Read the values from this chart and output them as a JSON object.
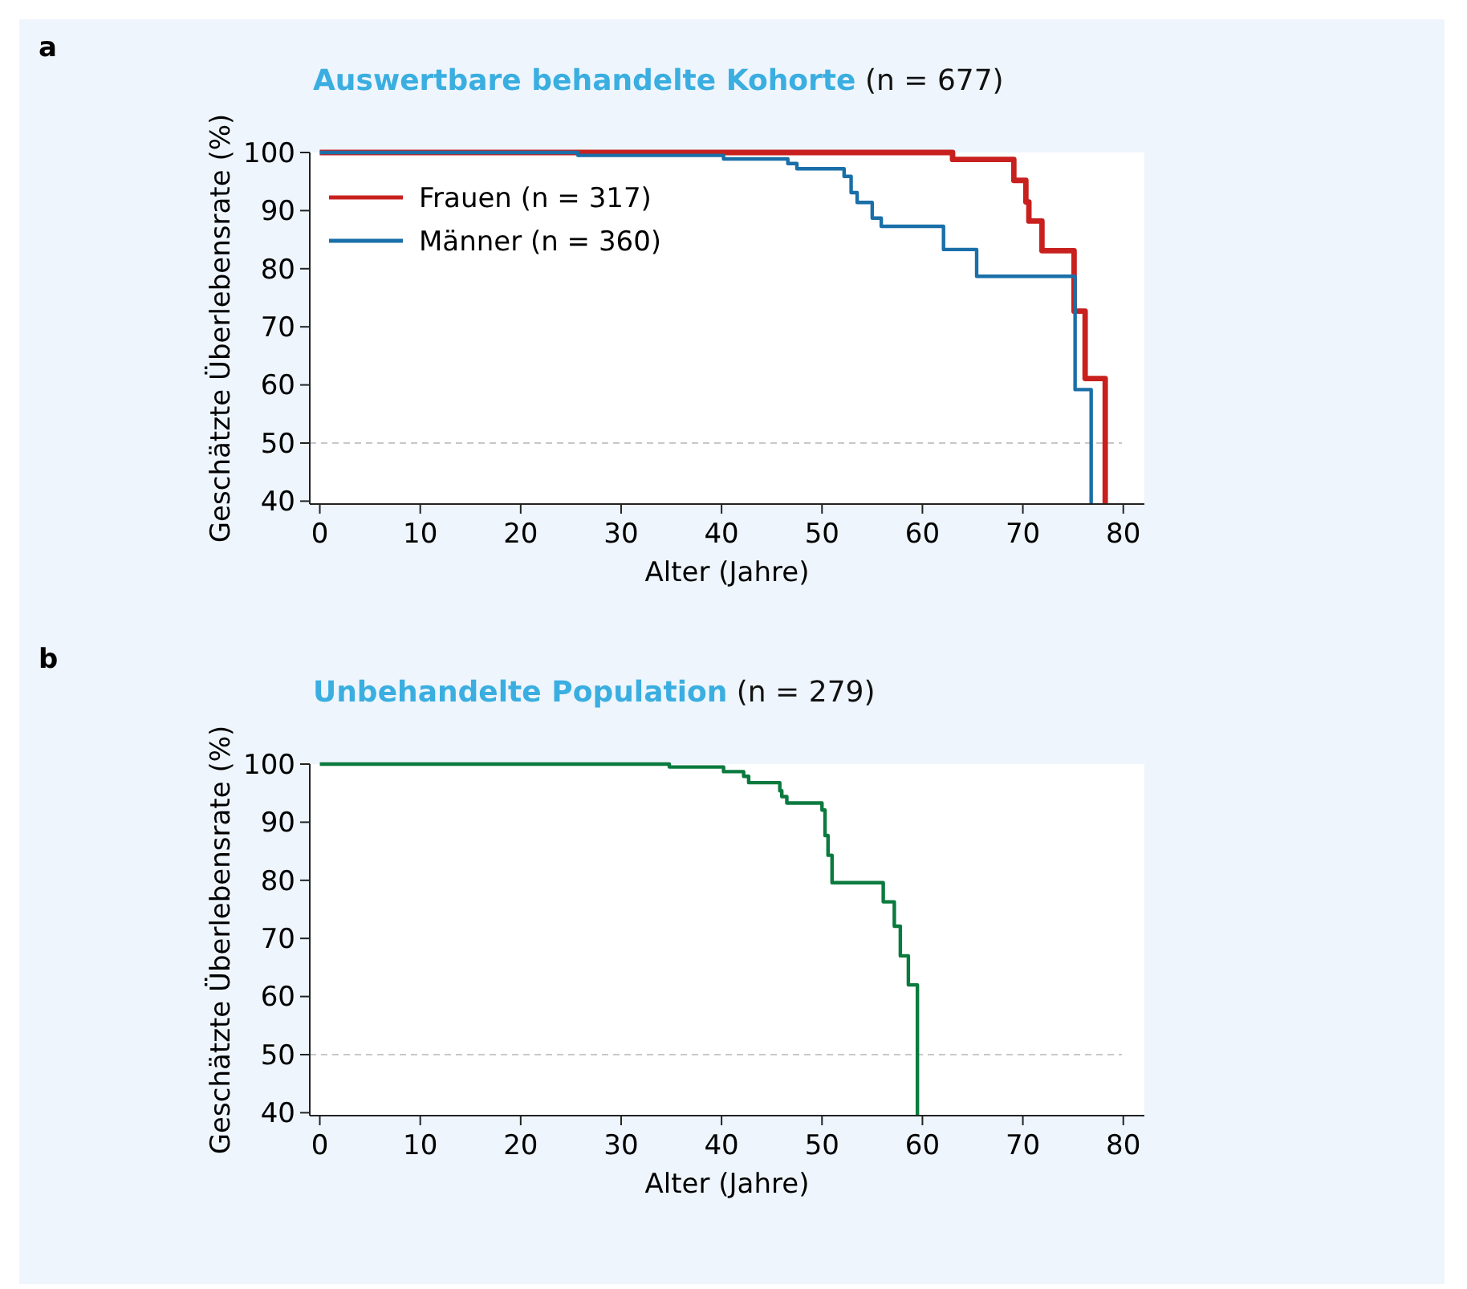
{
  "chart_data": [
    {
      "type": "step",
      "title": "Auswertbare behandelte Kohorte",
      "subtitle": "(n = 677)",
      "xlabel": "Alter (Jahre)",
      "ylabel": "Geschätzte Überlebensrate (%)",
      "annotations": [
        "a"
      ],
      "xlim": [
        -1,
        82.1
      ],
      "ylim": [
        39.5,
        100
      ],
      "xticks": [
        0,
        10,
        20,
        30,
        40,
        50,
        60,
        70,
        80
      ],
      "yticks": [
        40,
        50,
        60,
        70,
        80,
        90,
        100
      ],
      "legend": "top left",
      "grid": false,
      "ref_lines": [
        {
          "axis": "y",
          "value": 50,
          "color": "#c8c8c8",
          "line_style": "dashed"
        }
      ],
      "series": [
        {
          "name": "Frauen (n = 317)",
          "color": "#c8201e",
          "x": [
            0,
            63.0,
            69.1,
            70.3,
            70.6,
            71.9,
            75.1,
            76.2,
            78.2
          ],
          "values": [
            100,
            98.8,
            95.2,
            91.5,
            88.2,
            83.1,
            72.7,
            61.1,
            39.5
          ]
        },
        {
          "name": "Männer (n = 360)",
          "color": "#1a6fa8",
          "x": [
            0,
            25.7,
            40.2,
            46.6,
            47.5,
            52.2,
            52.9,
            53.5,
            55.0,
            55.9,
            62.1,
            65.4,
            75.2,
            76.8
          ],
          "values": [
            100,
            99.5,
            98.9,
            98.1,
            97.2,
            95.9,
            93.1,
            91.4,
            88.7,
            87.3,
            83.3,
            78.7,
            59.2,
            39.5
          ]
        }
      ]
    },
    {
      "type": "step",
      "title": "Unbehandelte Population",
      "subtitle": "(n = 279)",
      "xlabel": "Alter (Jahre)",
      "ylabel": "Geschätzte Überlebensrate (%)",
      "annotations": [
        "b"
      ],
      "xlim": [
        -1,
        82.1
      ],
      "ylim": [
        39.5,
        100
      ],
      "xticks": [
        0,
        10,
        20,
        30,
        40,
        50,
        60,
        70,
        80
      ],
      "yticks": [
        40,
        50,
        60,
        70,
        80,
        90,
        100
      ],
      "grid": false,
      "ref_lines": [
        {
          "axis": "y",
          "value": 50,
          "color": "#c8c8c8",
          "line_style": "dashed"
        }
      ],
      "series": [
        {
          "color": "#0a7a3e",
          "x": [
            0,
            34.8,
            40.2,
            42.2,
            42.7,
            45.8,
            46.0,
            46.5,
            50.0,
            50.3,
            50.6,
            51.0,
            56.1,
            57.2,
            57.8,
            58.6,
            59.5
          ],
          "values": [
            100,
            99.5,
            98.7,
            97.9,
            96.8,
            95.4,
            94.4,
            93.3,
            92.1,
            87.7,
            84.3,
            79.6,
            76.3,
            72.1,
            67.0,
            62.0,
            39.5
          ]
        }
      ]
    }
  ]
}
